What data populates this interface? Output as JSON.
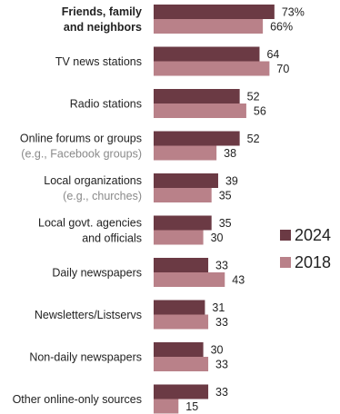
{
  "chart_data": {
    "type": "bar",
    "orientation": "horizontal",
    "categories": [
      {
        "lines": [
          "Friends, family",
          "and neighbors"
        ],
        "sublines": [],
        "bold": true
      },
      {
        "lines": [
          "TV news stations"
        ],
        "sublines": []
      },
      {
        "lines": [
          "Radio stations"
        ],
        "sublines": []
      },
      {
        "lines": [
          "Online forums or groups"
        ],
        "sublines": [
          "(e.g., Facebook groups)"
        ]
      },
      {
        "lines": [
          "Local organizations"
        ],
        "sublines": [
          "(e.g., churches)"
        ]
      },
      {
        "lines": [
          "Local govt. agencies",
          "and officials"
        ],
        "sublines": []
      },
      {
        "lines": [
          "Daily newspapers"
        ],
        "sublines": []
      },
      {
        "lines": [
          "Newsletters/Listservs"
        ],
        "sublines": []
      },
      {
        "lines": [
          "Non-daily newspapers"
        ],
        "sublines": []
      },
      {
        "lines": [
          "Other online-only sources"
        ],
        "sublines": []
      }
    ],
    "series": [
      {
        "name": "2024",
        "color": "#6b3a44",
        "values": [
          73,
          64,
          52,
          52,
          39,
          35,
          33,
          31,
          30,
          33
        ],
        "labels": [
          "73%",
          "64",
          "52",
          "52",
          "39",
          "35",
          "33",
          "31",
          "30",
          "33"
        ]
      },
      {
        "name": "2018",
        "color": "#b98189",
        "values": [
          66,
          70,
          56,
          38,
          35,
          30,
          43,
          33,
          33,
          15
        ],
        "labels": [
          "66%",
          "70",
          "56",
          "38",
          "35",
          "30",
          "43",
          "33",
          "33",
          "15"
        ]
      }
    ],
    "xlim": [
      0,
      100
    ],
    "legend": "right"
  }
}
